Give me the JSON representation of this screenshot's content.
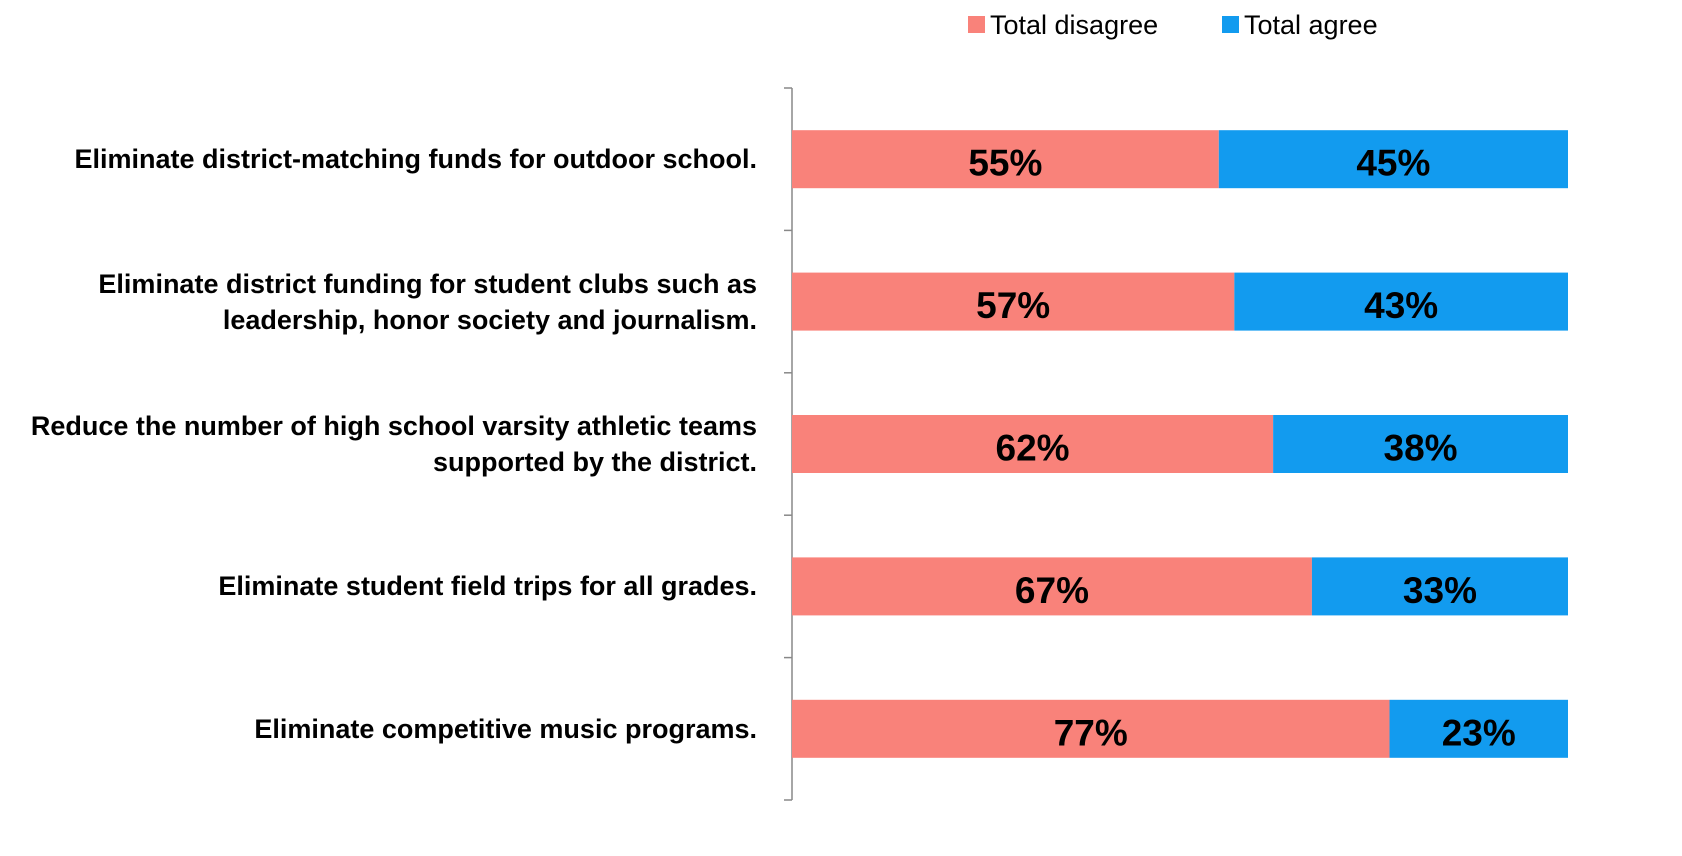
{
  "chart_data": {
    "type": "stacked-bar-horizontal",
    "categories": [
      "Eliminate district-matching funds for outdoor school.",
      "Eliminate district funding for student clubs such as leadership, honor society and journalism.",
      "Reduce the number of high school varsity athletic teams supported by the district.",
      "Eliminate student field trips for all grades.",
      "Eliminate competitive music programs."
    ],
    "series": [
      {
        "name": "Total disagree",
        "color": "#f9827a",
        "values": [
          55,
          57,
          62,
          67,
          77
        ],
        "value_labels": [
          "55%",
          "57%",
          "62%",
          "67%",
          "77%"
        ]
      },
      {
        "name": "Total agree",
        "color": "#129bef",
        "values": [
          45,
          43,
          38,
          33,
          23
        ],
        "value_labels": [
          "45%",
          "43%",
          "38%",
          "33%",
          "23%"
        ]
      }
    ],
    "xlim": [
      0,
      100
    ]
  }
}
